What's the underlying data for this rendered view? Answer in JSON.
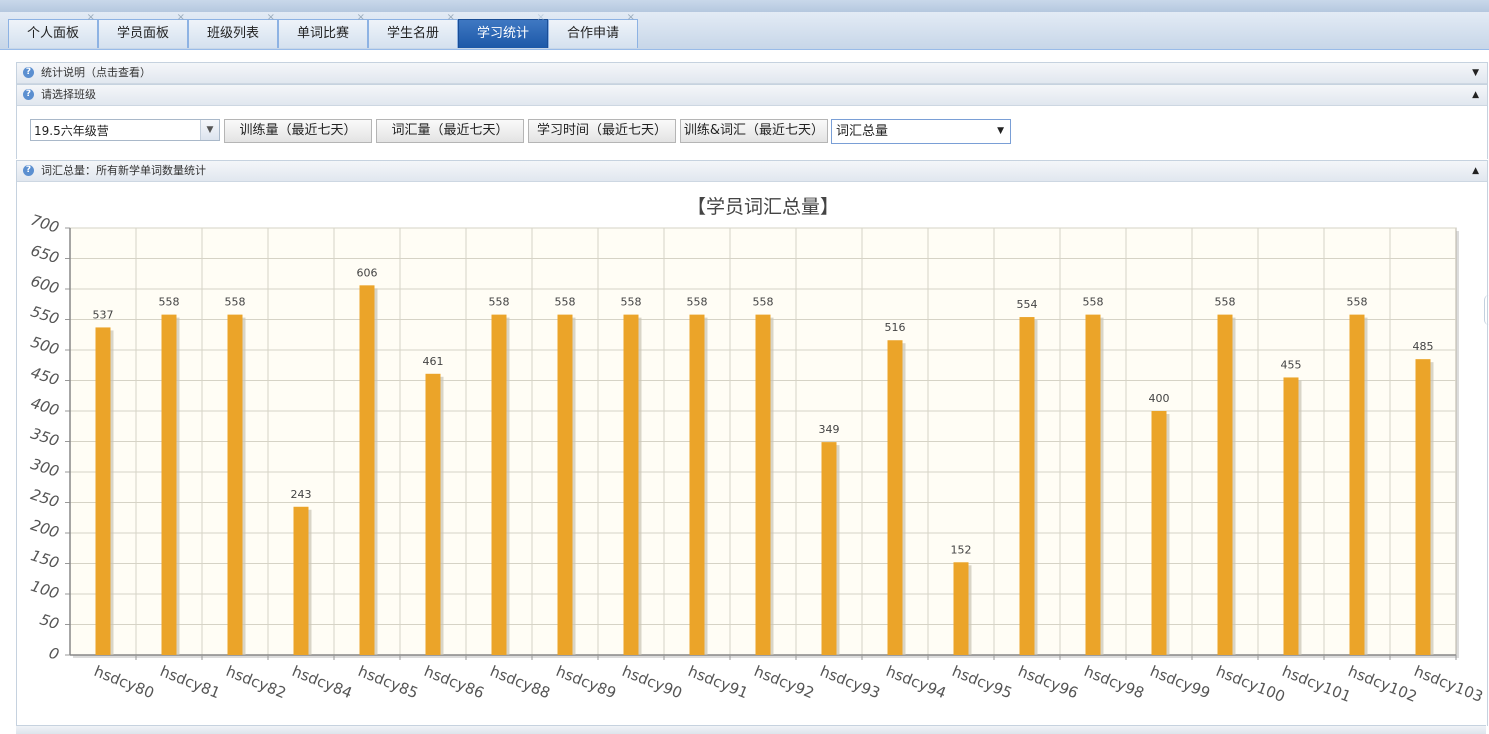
{
  "tabs": [
    {
      "label": "个人面板"
    },
    {
      "label": "学员面板"
    },
    {
      "label": "班级列表"
    },
    {
      "label": "单词比赛"
    },
    {
      "label": "学生名册"
    },
    {
      "label": "学习统计",
      "active": true
    },
    {
      "label": "合作申请"
    }
  ],
  "panels": {
    "info": {
      "title": "统计说明（点击查看）",
      "icon": "question-icon",
      "toggle": "▼"
    },
    "select_class": {
      "title": "请选择班级",
      "icon": "question-icon",
      "toggle": "▲"
    },
    "chart_panel": {
      "title": "词汇总量：所有新学单词数量统计",
      "icon": "question-icon",
      "toggle": "▲"
    }
  },
  "controls": {
    "class_select": "19.5六年级营",
    "buttons": [
      "训练量（最近七天）",
      "词汇量（最近七天）",
      "学习时间（最近七天）",
      "训练&词汇（最近七天）"
    ],
    "stat_select": "词汇总量"
  },
  "colors": {
    "bar": "#eba429",
    "bar_shadow": "#c9c3b4",
    "plot_bg": "#fffdf5",
    "grid": "#d6d3c6",
    "active_tab": "#1f5ba9"
  },
  "chart_data": {
    "type": "bar",
    "title": "【学员词汇总量】",
    "categories": [
      "hsdcy80",
      "hsdcy81",
      "hsdcy82",
      "hsdcy84",
      "hsdcy85",
      "hsdcy86",
      "hsdcy88",
      "hsdcy89",
      "hsdcy90",
      "hsdcy91",
      "hsdcy92",
      "hsdcy93",
      "hsdcy94",
      "hsdcy95",
      "hsdcy96",
      "hsdcy98",
      "hsdcy99",
      "hsdcy100",
      "hsdcy101",
      "hsdcy102",
      "hsdcy103"
    ],
    "values": [
      537,
      558,
      558,
      243,
      606,
      461,
      558,
      558,
      558,
      558,
      558,
      349,
      516,
      152,
      554,
      558,
      400,
      558,
      455,
      558,
      485
    ],
    "ylim": [
      0,
      700
    ],
    "yticks": [
      0,
      50,
      100,
      150,
      200,
      250,
      300,
      350,
      400,
      450,
      500,
      550,
      600,
      650,
      700
    ],
    "grid": true
  }
}
